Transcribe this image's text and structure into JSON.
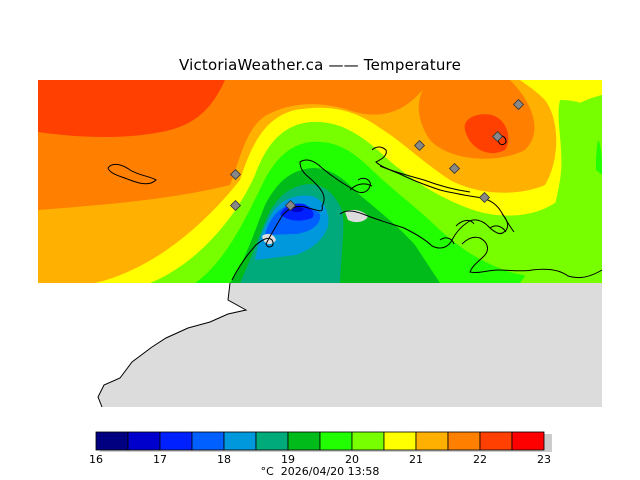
{
  "title": "VictoriaWeather.ca  ——  Temperature",
  "colors": {
    "land": "#dcdcdc",
    "coast": "#000000",
    "station": "#888888"
  },
  "legend": {
    "ticks": [
      "16",
      "17",
      "18",
      "19",
      "20",
      "21",
      "22",
      "23"
    ],
    "bins": [
      {
        "from": 16.0,
        "to": 16.5,
        "color": "#000080"
      },
      {
        "from": 16.5,
        "to": 17.0,
        "color": "#0000cd"
      },
      {
        "from": 17.0,
        "to": 17.5,
        "color": "#0020ff"
      },
      {
        "from": 17.5,
        "to": 18.0,
        "color": "#0060ff"
      },
      {
        "from": 18.0,
        "to": 18.5,
        "color": "#0098dd"
      },
      {
        "from": 18.5,
        "to": 19.0,
        "color": "#00aa7a"
      },
      {
        "from": 19.0,
        "to": 19.5,
        "color": "#00bb1a"
      },
      {
        "from": 19.5,
        "to": 20.0,
        "color": "#22ff00"
      },
      {
        "from": 20.0,
        "to": 20.5,
        "color": "#77ff00"
      },
      {
        "from": 20.5,
        "to": 21.0,
        "color": "#ffff00"
      },
      {
        "from": 21.0,
        "to": 21.5,
        "color": "#ffb000"
      },
      {
        "from": 21.5,
        "to": 22.0,
        "color": "#ff7f00"
      },
      {
        "from": 22.0,
        "to": 22.5,
        "color": "#ff4000"
      },
      {
        "from": 22.5,
        "to": 23.0,
        "color": "#ff0000"
      }
    ]
  },
  "units": "°C",
  "timestamp": "2026/04/20 13:58"
}
